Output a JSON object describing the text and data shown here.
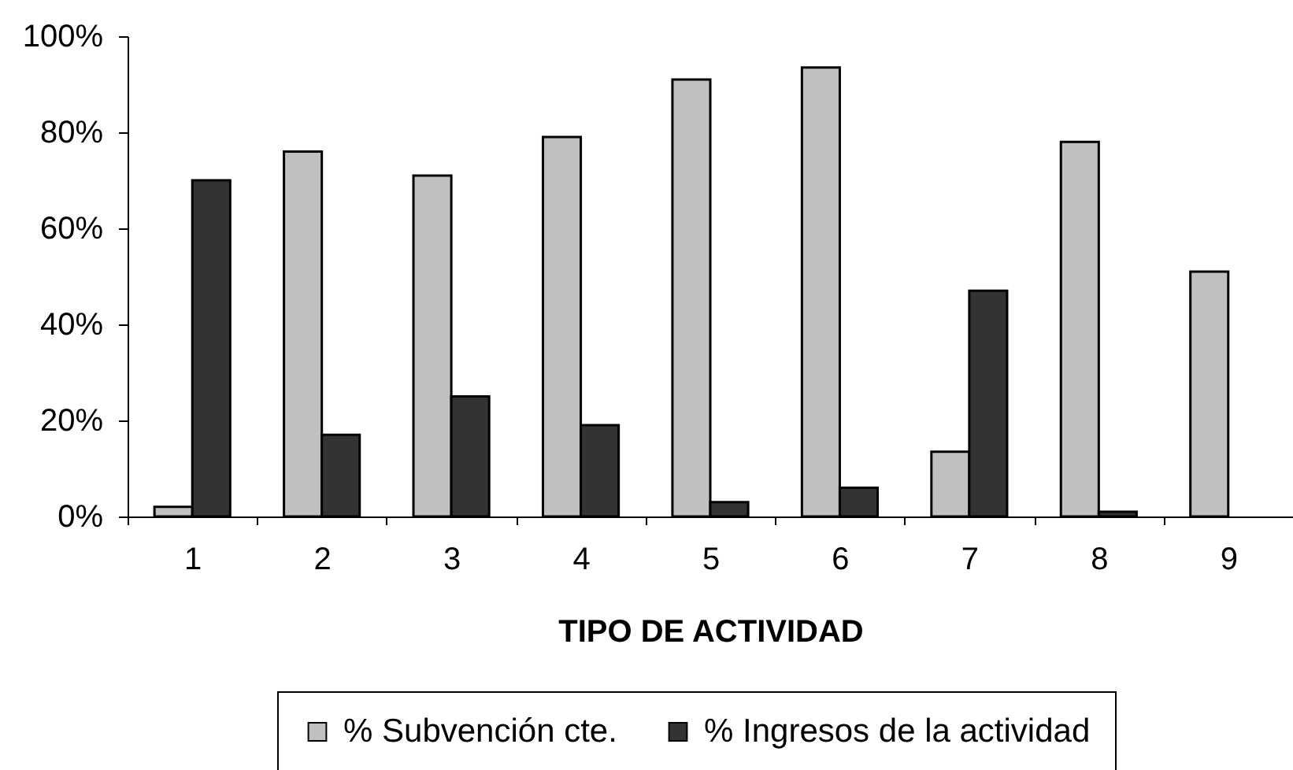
{
  "chart_data": {
    "type": "bar",
    "xlabel": "TIPO DE ACTIVIDAD",
    "categories": [
      "1",
      "2",
      "3",
      "4",
      "5",
      "6",
      "7",
      "8",
      "9"
    ],
    "series": [
      {
        "name": "% Subvención cte.",
        "color": "#c0c0c0",
        "values": [
          2,
          76,
          71,
          79,
          91,
          93.5,
          13.5,
          78,
          51
        ]
      },
      {
        "name": "% Ingresos de la actividad",
        "color": "#333333",
        "values": [
          70,
          17,
          25,
          19,
          3,
          6,
          47,
          1,
          null
        ]
      }
    ],
    "ylim": [
      0,
      100
    ],
    "yticks": [
      {
        "value": 0,
        "label": "0%"
      },
      {
        "value": 20,
        "label": "20%"
      },
      {
        "value": 40,
        "label": "40%"
      },
      {
        "value": 60,
        "label": "60%"
      },
      {
        "value": 80,
        "label": "80%"
      },
      {
        "value": 100,
        "label": "100%"
      }
    ],
    "legend": "bottom",
    "grid": false
  }
}
